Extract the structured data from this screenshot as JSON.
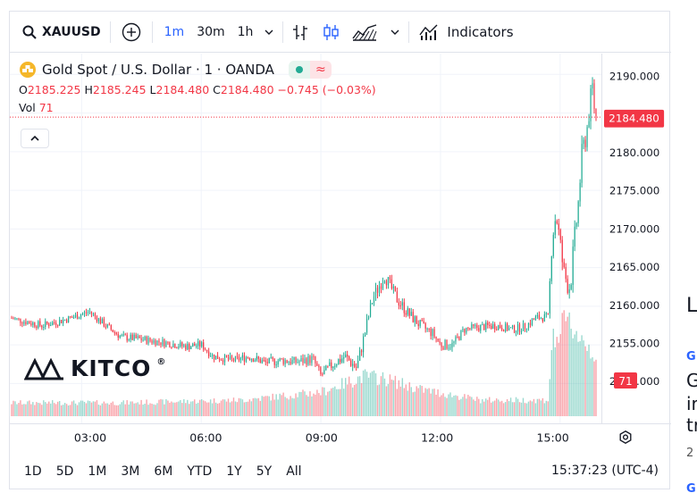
{
  "toolbar": {
    "symbol": "XAUUSD",
    "intervals": [
      "1m",
      "30m",
      "1h"
    ],
    "active_interval": "1m",
    "indicators_label": "Indicators"
  },
  "legend": {
    "title": "Gold Spot / U.S. Dollar · 1 · OANDA",
    "o_label": "O",
    "o_value": "2185.225",
    "h_label": "H",
    "h_value": "2185.245",
    "l_label": "L",
    "l_value": "2184.480",
    "c_label": "C",
    "c_value": "2184.480",
    "change": "−0.745 (−0.03%)",
    "vol_label": "Vol",
    "vol_value": "71"
  },
  "logo_text": "KITCO",
  "range_buttons": [
    "1D",
    "5D",
    "1M",
    "3M",
    "6M",
    "YTD",
    "1Y",
    "5Y",
    "All"
  ],
  "clock": "15:37:23 (UTC-4)",
  "side_fragments": [
    "L",
    "G",
    "G",
    "ir",
    "tr",
    "2",
    "G"
  ],
  "colors": {
    "up": "#089981",
    "down": "#f23645",
    "accent": "#2962ff"
  },
  "chart_data": {
    "type": "candlestick",
    "price_ticks": [
      "2190.000",
      "2185.000",
      "2180.000",
      "2175.000",
      "2170.000",
      "2165.000",
      "2160.000",
      "2155.000",
      "2150.000"
    ],
    "time_ticks": [
      "03:00",
      "06:00",
      "09:00",
      "12:00",
      "15:00"
    ],
    "last_price": "2184.480",
    "last_volume": "71",
    "ylim": [
      2146,
      2192
    ],
    "xlim_hours": [
      1.2,
      15.9
    ],
    "close_path": [
      [
        1.2,
        2158.5
      ],
      [
        1.6,
        2158.0
      ],
      [
        2.0,
        2157.5
      ],
      [
        2.4,
        2158.0
      ],
      [
        2.8,
        2158.6
      ],
      [
        3.2,
        2159.3
      ],
      [
        3.6,
        2157.5
      ],
      [
        4.0,
        2156.0
      ],
      [
        4.4,
        2155.8
      ],
      [
        4.8,
        2155.5
      ],
      [
        5.2,
        2155.2
      ],
      [
        5.6,
        2154.8
      ],
      [
        6.0,
        2155.0
      ],
      [
        6.3,
        2153.5
      ],
      [
        6.8,
        2153.0
      ],
      [
        7.2,
        2153.5
      ],
      [
        7.6,
        2152.7
      ],
      [
        8.0,
        2153.0
      ],
      [
        8.4,
        2152.8
      ],
      [
        8.8,
        2153.2
      ],
      [
        9.0,
        2151.0
      ],
      [
        9.3,
        2152.5
      ],
      [
        9.6,
        2153.5
      ],
      [
        9.9,
        2152.0
      ],
      [
        10.1,
        2156.5
      ],
      [
        10.3,
        2161.0
      ],
      [
        10.6,
        2164.0
      ],
      [
        10.9,
        2161.0
      ],
      [
        11.2,
        2159.0
      ],
      [
        11.5,
        2157.5
      ],
      [
        11.8,
        2156.5
      ],
      [
        12.0,
        2155.0
      ],
      [
        12.3,
        2155.0
      ],
      [
        12.6,
        2157.0
      ],
      [
        13.0,
        2157.3
      ],
      [
        13.4,
        2157.5
      ],
      [
        13.8,
        2157.0
      ],
      [
        14.1,
        2157.3
      ],
      [
        14.4,
        2158.5
      ],
      [
        14.7,
        2158.6
      ],
      [
        14.8,
        2169.0
      ],
      [
        14.9,
        2172.0
      ],
      [
        15.0,
        2168.0
      ],
      [
        15.1,
        2164.0
      ],
      [
        15.25,
        2162.5
      ],
      [
        15.35,
        2168.0
      ],
      [
        15.45,
        2173.0
      ],
      [
        15.55,
        2180.0
      ],
      [
        15.65,
        2182.0
      ],
      [
        15.75,
        2186.0
      ],
      [
        15.8,
        2189.0
      ],
      [
        15.85,
        2186.0
      ],
      [
        15.9,
        2184.48
      ]
    ],
    "volume_profile": [
      [
        1.2,
        0.1
      ],
      [
        4.0,
        0.1
      ],
      [
        7.0,
        0.12
      ],
      [
        9.0,
        0.18
      ],
      [
        10.1,
        0.3
      ],
      [
        10.6,
        0.28
      ],
      [
        11.5,
        0.2
      ],
      [
        13.0,
        0.12
      ],
      [
        14.7,
        0.12
      ],
      [
        14.8,
        0.55
      ],
      [
        15.2,
        0.7
      ],
      [
        15.5,
        0.6
      ],
      [
        15.9,
        0.45
      ]
    ]
  }
}
